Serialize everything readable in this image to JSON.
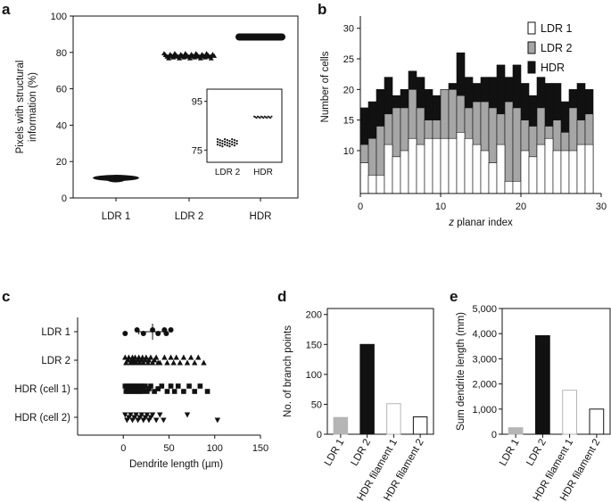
{
  "colors": {
    "ldr1": "#ffffff",
    "ldr2": "#a6a6a6",
    "hdr": "#111111",
    "ldr1_bar": "#b5b5b5",
    "ldr2_bar": "#111111"
  },
  "panel_labels": {
    "a": "a",
    "b": "b",
    "c": "c",
    "d": "d",
    "e": "e"
  },
  "chart_data": [
    {
      "id": "a",
      "type": "scatter",
      "ylabel": "Pixels with structural information (%)",
      "ylabel_lines": [
        "Pixels with structural",
        "information (%)"
      ],
      "categories": [
        "LDR 1",
        "LDR 2",
        "HDR"
      ],
      "ylim": [
        0,
        100
      ],
      "yticks": [
        "0",
        "20",
        "40",
        "60",
        "80",
        "100"
      ],
      "series": [
        {
          "name": "LDR 1",
          "center": 11
        },
        {
          "name": "LDR 2",
          "center": 78
        },
        {
          "name": "HDR",
          "center": 88.5
        }
      ],
      "inset": {
        "categories": [
          "LDR 2",
          "HDR"
        ],
        "ylim": [
          70,
          100
        ],
        "yticks": [
          "75",
          "95"
        ],
        "centers": [
          78,
          88.5
        ]
      }
    },
    {
      "id": "b",
      "type": "bar",
      "stacked_overlap": true,
      "xlabel_italic": "z",
      "xlabel_rest": " planar index",
      "ylabel": "Number of cells",
      "xlim": [
        0,
        30
      ],
      "ylim": [
        3,
        32
      ],
      "xticks": [
        "0",
        "10",
        "20",
        "30"
      ],
      "yticks": [
        "10",
        "15",
        "20",
        "25",
        "30"
      ],
      "legend": [
        "LDR 1",
        "LDR 2",
        "HDR"
      ],
      "x": [
        0,
        1,
        2,
        3,
        4,
        5,
        6,
        7,
        8,
        9,
        10,
        11,
        12,
        13,
        14,
        15,
        16,
        17,
        18,
        19,
        20,
        21,
        22,
        23,
        24,
        25,
        26,
        27,
        28
      ],
      "series": [
        {
          "name": "HDR",
          "values": [
            17,
            18,
            20,
            22,
            19,
            20,
            23,
            22,
            20,
            19,
            20,
            21,
            26,
            22,
            21,
            22,
            22,
            24,
            22,
            24,
            21,
            19,
            22,
            21,
            21,
            18,
            20,
            21,
            20
          ]
        },
        {
          "name": "LDR 2",
          "values": [
            11,
            12,
            14,
            16,
            17,
            17,
            20,
            17,
            15,
            15,
            20,
            20,
            19,
            17,
            18,
            18,
            17,
            16,
            18,
            17,
            15,
            14,
            17,
            14,
            15,
            13,
            17,
            15,
            16
          ]
        },
        {
          "name": "LDR 1",
          "values": [
            8,
            6,
            6,
            11,
            9,
            10,
            12,
            11,
            12,
            12,
            12,
            12,
            13,
            12,
            11,
            10,
            8,
            11,
            5,
            5,
            10,
            9,
            11,
            12,
            10,
            10,
            10,
            11,
            11
          ]
        }
      ]
    },
    {
      "id": "c",
      "type": "scatter",
      "xlabel": "Dendrite length (µm)",
      "xlim": [
        -50,
        150
      ],
      "xticks": [
        "0",
        "50",
        "100",
        "150"
      ],
      "categories": [
        "LDR 1",
        "LDR 2",
        "HDR (cell 1)",
        "HDR (cell 2)"
      ],
      "series": [
        {
          "name": "LDR 1",
          "values": [
            2,
            15,
            22,
            32,
            38,
            45,
            47,
            52
          ],
          "mean": 32,
          "sd": 15
        },
        {
          "name": "LDR 2",
          "values": [
            2,
            3,
            5,
            6,
            8,
            9,
            10,
            11,
            12,
            13,
            14,
            16,
            17,
            18,
            20,
            21,
            22,
            24,
            25,
            27,
            28,
            30,
            32,
            34,
            36,
            38,
            40,
            45,
            48,
            52,
            55,
            58,
            62,
            66,
            70,
            74,
            78,
            82,
            88
          ]
        },
        {
          "name": "HDR (cell 1)",
          "values": [
            2,
            3,
            4,
            5,
            6,
            7,
            8,
            9,
            10,
            11,
            12,
            13,
            14,
            15,
            16,
            17,
            18,
            19,
            20,
            21,
            22,
            24,
            26,
            28,
            30,
            34,
            38,
            42,
            48,
            52,
            56,
            60,
            66,
            72,
            78,
            84,
            92
          ]
        },
        {
          "name": "HDR (cell 2)",
          "values": [
            2,
            4,
            6,
            8,
            10,
            12,
            14,
            16,
            18,
            20,
            22,
            24,
            26,
            28,
            30,
            32,
            36,
            40,
            44,
            70,
            103
          ]
        }
      ]
    },
    {
      "id": "d",
      "type": "bar",
      "ylabel": "No. of branch points",
      "ylim": [
        0,
        210
      ],
      "yticks": [
        "0",
        "50",
        "100",
        "150",
        "200"
      ],
      "categories": [
        "LDR 1",
        "LDR 2",
        "HDR filament 1",
        "HDR filament 2"
      ],
      "values": [
        28,
        150,
        51,
        29
      ]
    },
    {
      "id": "e",
      "type": "bar",
      "ylabel": "Sum dendrite length (mm)",
      "ylim": [
        0,
        5000
      ],
      "yticks": [
        "0",
        "1,000",
        "2,000",
        "3,000",
        "4,000",
        "5,000"
      ],
      "categories": [
        "LDR 1",
        "LDR 2",
        "HDR filament 1",
        "HDR filament 2"
      ],
      "values": [
        260,
        3920,
        1750,
        1000
      ]
    }
  ]
}
